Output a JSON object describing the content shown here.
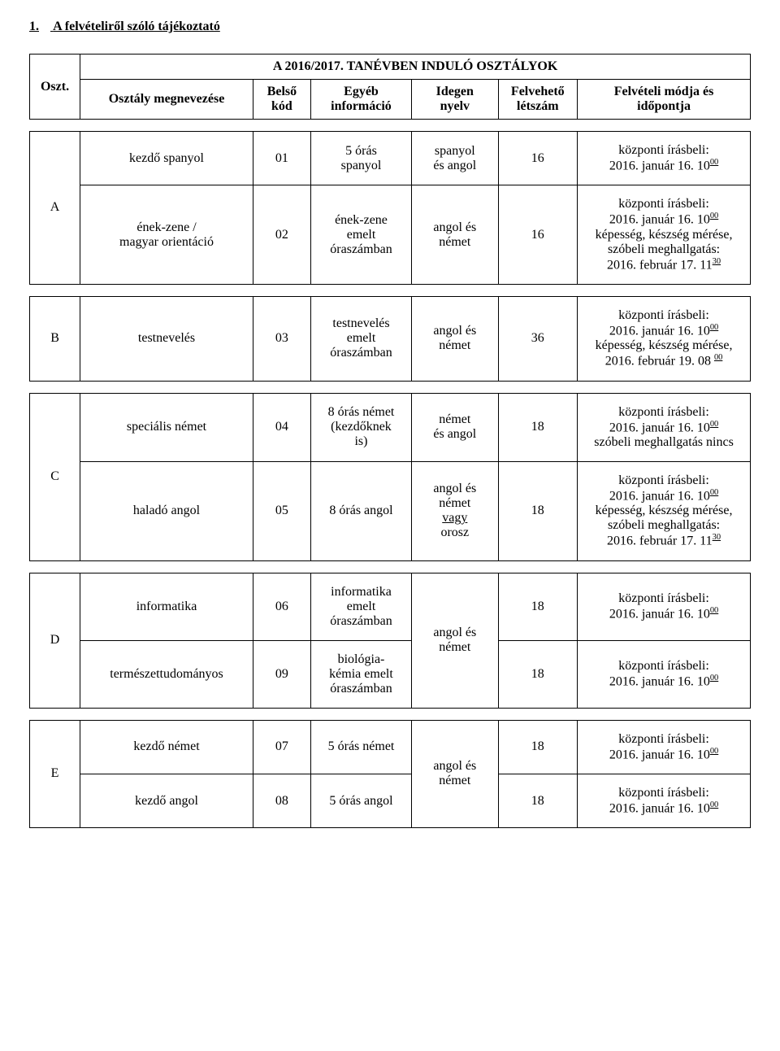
{
  "page": {
    "heading_number": "1.",
    "heading_text": "A felvételiről szóló tájékoztató",
    "subtitle": "A 2016/2017. TANÉVBEN INDULÓ OSZTÁLYOK"
  },
  "colwidths": {
    "c1": "7%",
    "c2": "24%",
    "c3": "8%",
    "c4": "14%",
    "c5": "12%",
    "c6": "11%",
    "c7": "24%"
  },
  "header": {
    "c1": "Oszt.",
    "c2": "Osztály megnevezése",
    "c3": "Belső\nkód",
    "c4": "Egyéb\ninformáció",
    "c5": "Idegen\nnyelv",
    "c6": "Felvehető\nlétszám",
    "c7": "Felvételi módja és\nidőpontja"
  },
  "common": {
    "kpi_prefix": "központi írásbeli:",
    "kpi_date": "2016. január 16. 10",
    "kpi_sup": "00",
    "ability": "képesség, készség mérése,",
    "oral": "szóbeli meghallgatás:",
    "oral_none": "szóbeli meghallgatás nincs",
    "feb17": "2016. február 17. 11",
    "feb17_sup": "30",
    "feb19": "2016. február 19. 08 ",
    "feb19_sup": "00"
  },
  "rows": {
    "A": {
      "label": "A",
      "r1": {
        "name": "kezdő spanyol",
        "code": "01",
        "info": "5 órás\nspanyol",
        "lang": "spanyol\nés angol",
        "cap": "16"
      },
      "r2": {
        "name": "ének-zene /\nmagyar orientáció",
        "code": "02",
        "info": "ének-zene\nemelt\nóraszámban",
        "lang": "angol és\nnémet",
        "cap": "16"
      }
    },
    "B": {
      "label": "B",
      "r1": {
        "name": "testnevelés",
        "code": "03",
        "info": "testnevelés\nemelt\nóraszámban",
        "lang": "angol és\nnémet",
        "cap": "36"
      }
    },
    "C": {
      "label": "C",
      "r1": {
        "name": "speciális német",
        "code": "04",
        "info": "8 órás német\n(kezdőknek\nis)",
        "lang": "német\nés angol",
        "cap": "18"
      },
      "r2": {
        "name": "haladó angol",
        "code": "05",
        "info": "8 órás angol",
        "lang_parts": {
          "a": "angol és",
          "b": "német",
          "c": "vagy",
          "d": "orosz"
        },
        "cap": "18"
      }
    },
    "D": {
      "label": "D",
      "r1": {
        "name": "informatika",
        "code": "06",
        "info": "informatika\nemelt\nóraszámban",
        "cap": "18"
      },
      "r2": {
        "name": "természettudományos",
        "code": "09",
        "info": "biológia-\nkémia emelt\nóraszámban",
        "cap": "18"
      },
      "lang": "angol és\nnémet"
    },
    "E": {
      "label": "E",
      "r1": {
        "name": "kezdő német",
        "code": "07",
        "info": "5 órás német",
        "cap": "18"
      },
      "r2": {
        "name": "kezdő angol",
        "code": "08",
        "info": "5 órás angol",
        "cap": "18"
      },
      "lang": "angol és\nnémet"
    }
  }
}
